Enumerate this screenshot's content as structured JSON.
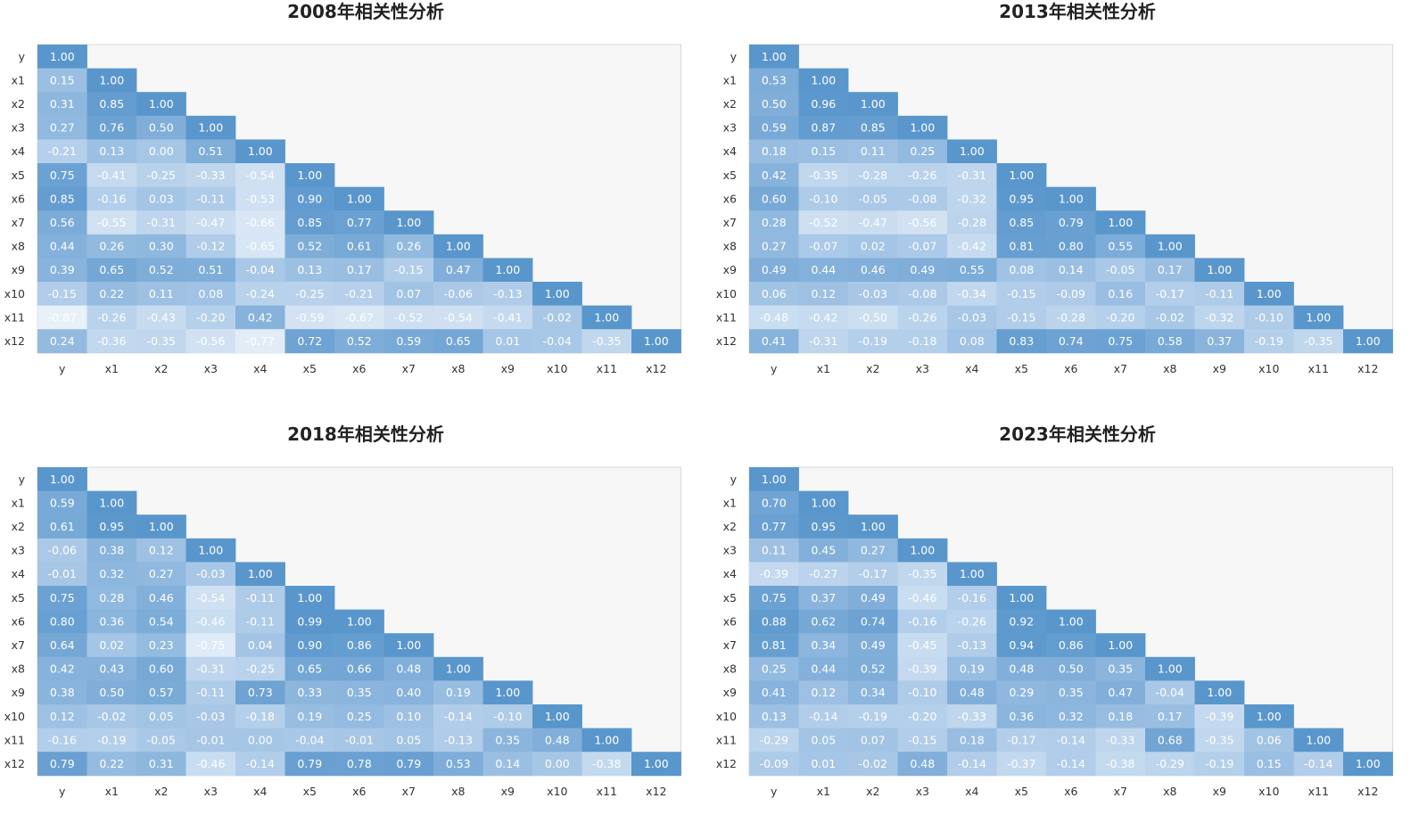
{
  "colors": {
    "background_panel": "#f7f7f7",
    "low": "#f2f7fc",
    "mid": "#a6c6e6",
    "high": "#5996cc",
    "cell_text": "#ffffff",
    "axis_text": "#333333"
  },
  "chart_data": [
    {
      "type": "heatmap",
      "title": "2008年相关性分析",
      "labels": [
        "y",
        "x1",
        "x2",
        "x3",
        "x4",
        "x5",
        "x6",
        "x7",
        "x8",
        "x9",
        "x10",
        "x11",
        "x12"
      ],
      "display_values": [
        [
          "1.00"
        ],
        [
          "0.15",
          "1.00"
        ],
        [
          "0.31",
          "0.85",
          "1.00"
        ],
        [
          "0.27",
          "0.76",
          "0.50",
          "1.00"
        ],
        [
          "-0.21",
          "0.13",
          "0.00",
          "0.51",
          "1.00"
        ],
        [
          "0.75",
          "-0.41",
          "-0.25",
          "-0.33",
          "-0.54",
          "1.00"
        ],
        [
          "0.85",
          "-0.16",
          "0.03",
          "-0.11",
          "-0.53",
          "0.90",
          "1.00"
        ],
        [
          "0.56",
          "-0.55",
          "-0.31",
          "-0.47",
          "-0.66",
          "0.85",
          "0.77",
          "1.00"
        ],
        [
          "0.44",
          "0.26",
          "0.30",
          "-0.12",
          "-0.65",
          "0.52",
          "0.61",
          "0.26",
          "1.00"
        ],
        [
          "0.39",
          "0.65",
          "0.52",
          "0.51",
          "-0.04",
          "0.13",
          "0.17",
          "-0.15",
          "0.47",
          "1.00"
        ],
        [
          "-0.15",
          "0.22",
          "0.11",
          "0.08",
          "-0.24",
          "-0.25",
          "-0.21",
          "0.07",
          "-0.06",
          "-0.13",
          "1.00"
        ],
        [
          "-0.87",
          "-0.26",
          "-0.43",
          "-0.20",
          "0.42",
          "-0.59",
          "-0.67",
          "-0.52",
          "-0.54",
          "-0.41",
          "-0.02",
          "1.00"
        ],
        [
          "0.24",
          "-0.36",
          "-0.35",
          "-0.56",
          "-0.77",
          "0.72",
          "0.52",
          "0.59",
          "0.65",
          "0.01",
          "-0.04",
          "-0.35",
          "1.00"
        ]
      ]
    },
    {
      "type": "heatmap",
      "title": "2013年相关性分析",
      "labels": [
        "y",
        "x1",
        "x2",
        "x3",
        "x4",
        "x5",
        "x6",
        "x7",
        "x8",
        "x9",
        "x10",
        "x11",
        "x12"
      ],
      "display_values": [
        [
          "1.00"
        ],
        [
          "0.53",
          "1.00"
        ],
        [
          "0.50",
          "0.96",
          "1.00"
        ],
        [
          "0.59",
          "0.87",
          "0.85",
          "1.00"
        ],
        [
          "0.18",
          "0.15",
          "0.11",
          "0.25",
          "1.00"
        ],
        [
          "0.42",
          "-0.35",
          "-0.28",
          "-0.26",
          "-0.31",
          "1.00"
        ],
        [
          "0.60",
          "-0.10",
          "-0.05",
          "-0.08",
          "-0.32",
          "0.95",
          "1.00"
        ],
        [
          "0.28",
          "-0.52",
          "-0.47",
          "-0.56",
          "-0.28",
          "0.85",
          "0.79",
          "1.00"
        ],
        [
          "0.27",
          "-0.07",
          "0.02",
          "-0.07",
          "-0.42",
          "0.81",
          "0.80",
          "0.55",
          "1.00"
        ],
        [
          "0.49",
          "0.44",
          "0.46",
          "0.49",
          "0.55",
          "0.08",
          "0.14",
          "-0.05",
          "0.17",
          "1.00"
        ],
        [
          "0.06",
          "0.12",
          "-0.03",
          "-0.08",
          "-0.34",
          "-0.15",
          "-0.09",
          "0.16",
          "-0.17",
          "-0.11",
          "1.00"
        ],
        [
          "-0.48",
          "-0.42",
          "-0.50",
          "-0.26",
          "-0.03",
          "-0.15",
          "-0.28",
          "-0.20",
          "-0.02",
          "-0.32",
          "-0.10",
          "1.00"
        ],
        [
          "0.41",
          "-0.31",
          "-0.19",
          "-0.18",
          "0.08",
          "0.83",
          "0.74",
          "0.75",
          "0.58",
          "0.37",
          "-0.19",
          "-0.35",
          "1.00"
        ]
      ]
    },
    {
      "type": "heatmap",
      "title": "2018年相关性分析",
      "labels": [
        "y",
        "x1",
        "x2",
        "x3",
        "x4",
        "x5",
        "x6",
        "x7",
        "x8",
        "x9",
        "x10",
        "x11",
        "x12"
      ],
      "display_values": [
        [
          "1.00"
        ],
        [
          "0.59",
          "1.00"
        ],
        [
          "0.61",
          "0.95",
          "1.00"
        ],
        [
          "-0.06",
          "0.38",
          "0.12",
          "1.00"
        ],
        [
          "-0.01",
          "0.32",
          "0.27",
          "-0.03",
          "1.00"
        ],
        [
          "0.75",
          "0.28",
          "0.46",
          "-0.54",
          "-0.11",
          "1.00"
        ],
        [
          "0.80",
          "0.36",
          "0.54",
          "-0.46",
          "-0.11",
          "0.99",
          "1.00"
        ],
        [
          "0.64",
          "0.02",
          "0.23",
          "-0.75",
          "0.04",
          "0.90",
          "0.86",
          "1.00"
        ],
        [
          "0.42",
          "0.43",
          "0.60",
          "-0.31",
          "-0.25",
          "0.65",
          "0.66",
          "0.48",
          "1.00"
        ],
        [
          "0.38",
          "0.50",
          "0.57",
          "-0.11",
          "0.73",
          "0.33",
          "0.35",
          "0.40",
          "0.19",
          "1.00"
        ],
        [
          "0.12",
          "-0.02",
          "0.05",
          "-0.03",
          "-0.18",
          "0.19",
          "0.25",
          "0.10",
          "-0.14",
          "-0.10",
          "1.00"
        ],
        [
          "-0.16",
          "-0.19",
          "-0.05",
          "-0.01",
          "0.00",
          "-0.04",
          "-0.01",
          "0.05",
          "-0.13",
          "0.35",
          "0.48",
          "1.00"
        ],
        [
          "0.79",
          "0.22",
          "0.31",
          "-0.46",
          "-0.14",
          "0.79",
          "0.78",
          "0.79",
          "0.53",
          "0.14",
          "0.00",
          "-0.38",
          "1.00"
        ]
      ]
    },
    {
      "type": "heatmap",
      "title": "2023年相关性分析",
      "labels": [
        "y",
        "x1",
        "x2",
        "x3",
        "x4",
        "x5",
        "x6",
        "x7",
        "x8",
        "x9",
        "x10",
        "x11",
        "x12"
      ],
      "display_values": [
        [
          "1.00"
        ],
        [
          "0.70",
          "1.00"
        ],
        [
          "0.77",
          "0.95",
          "1.00"
        ],
        [
          "0.11",
          "0.45",
          "0.27",
          "1.00"
        ],
        [
          "-0.39",
          "-0.27",
          "-0.17",
          "-0.35",
          "1.00"
        ],
        [
          "0.75",
          "0.37",
          "0.49",
          "-0.46",
          "-0.16",
          "1.00"
        ],
        [
          "0.88",
          "0.62",
          "0.74",
          "-0.16",
          "-0.26",
          "0.92",
          "1.00"
        ],
        [
          "0.81",
          "0.34",
          "0.49",
          "-0.45",
          "-0.13",
          "0.94",
          "0.86",
          "1.00"
        ],
        [
          "0.25",
          "0.44",
          "0.52",
          "-0.39",
          "0.19",
          "0.48",
          "0.50",
          "0.35",
          "1.00"
        ],
        [
          "0.41",
          "0.12",
          "0.34",
          "-0.10",
          "0.48",
          "0.29",
          "0.35",
          "0.47",
          "-0.04",
          "1.00"
        ],
        [
          "0.13",
          "-0.14",
          "-0.19",
          "-0.20",
          "-0.33",
          "0.36",
          "0.32",
          "0.18",
          "0.17",
          "-0.39",
          "1.00"
        ],
        [
          "-0.29",
          "0.05",
          "0.07",
          "-0.15",
          "0.18",
          "-0.17",
          "-0.14",
          "-0.33",
          "0.68",
          "-0.35",
          "0.06",
          "1.00"
        ],
        [
          "-0.09",
          "0.01",
          "-0.02",
          "0.48",
          "-0.14",
          "-0.37",
          "-0.14",
          "-0.38",
          "-0.29",
          "-0.19",
          "0.15",
          "-0.14",
          "1.00"
        ]
      ]
    }
  ]
}
